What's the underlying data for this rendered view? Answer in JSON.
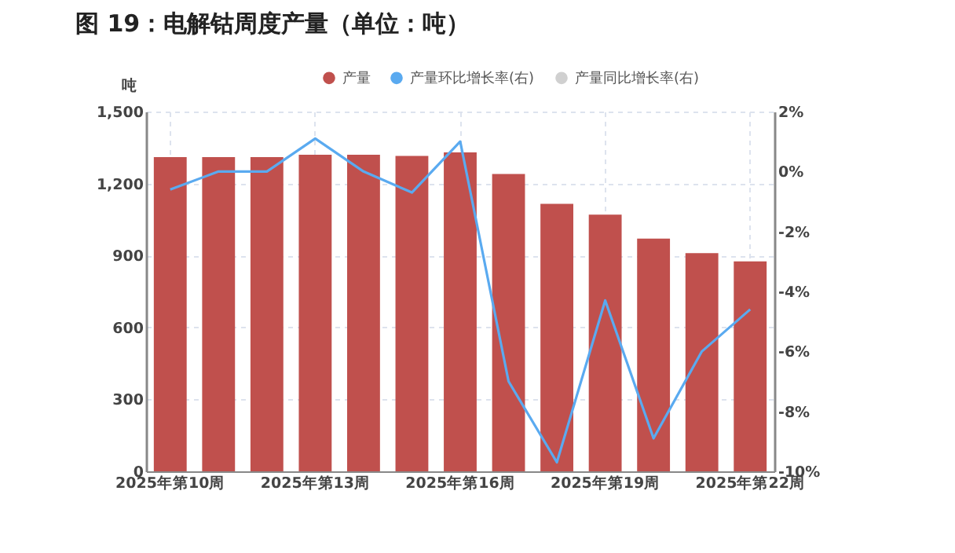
{
  "chart_data": {
    "type": "bar",
    "title": "图 19：电解钴周度产量（单位：吨）",
    "ylabel": "吨",
    "categories": [
      "2025年第10周",
      null,
      null,
      "2025年第13周",
      null,
      null,
      "2025年第16周",
      null,
      null,
      "2025年第19周",
      null,
      null,
      "2025年第22周"
    ],
    "series": [
      {
        "name": "产量",
        "color": "#c0504d",
        "values": [
          1310,
          1310,
          1310,
          1320,
          1320,
          1315,
          1330,
          1240,
          1115,
          1070,
          970,
          910,
          875
        ]
      },
      {
        "name": "产量环比增长率(右)",
        "type": "line",
        "axis": "y2",
        "color": "#5aaaf0",
        "values": [
          -0.6,
          0,
          0,
          1.1,
          0,
          -0.7,
          1.0,
          -7.0,
          -9.7,
          -4.3,
          -8.9,
          -6.0,
          -4.6
        ]
      },
      {
        "name": "产量同比增长率(右)",
        "type": "line",
        "axis": "y2",
        "color": "#d0d0d0",
        "values": [
          null,
          null,
          null,
          null,
          null,
          null,
          null,
          null,
          null,
          null,
          null,
          null,
          null
        ]
      }
    ],
    "ylim": [
      0,
      1500
    ],
    "yticks": [
      0,
      300,
      600,
      900,
      {
        "value": 1200,
        "label": "1,200"
      },
      {
        "value": 1500,
        "label": "1,500"
      }
    ],
    "y2lim": [
      -10,
      2
    ],
    "y2ticks": [
      {
        "value": 2,
        "label": "2%"
      },
      {
        "value": 0,
        "label": "0%"
      },
      {
        "value": -2,
        "label": "-2%"
      },
      {
        "value": -4,
        "label": "-4%"
      },
      {
        "value": -6,
        "label": "-6%"
      },
      {
        "value": -8,
        "label": "-8%"
      },
      {
        "value": -10,
        "label": "-10%"
      }
    ],
    "grid": true,
    "legend": "top right",
    "marker": "none",
    "line_style": "solid"
  }
}
